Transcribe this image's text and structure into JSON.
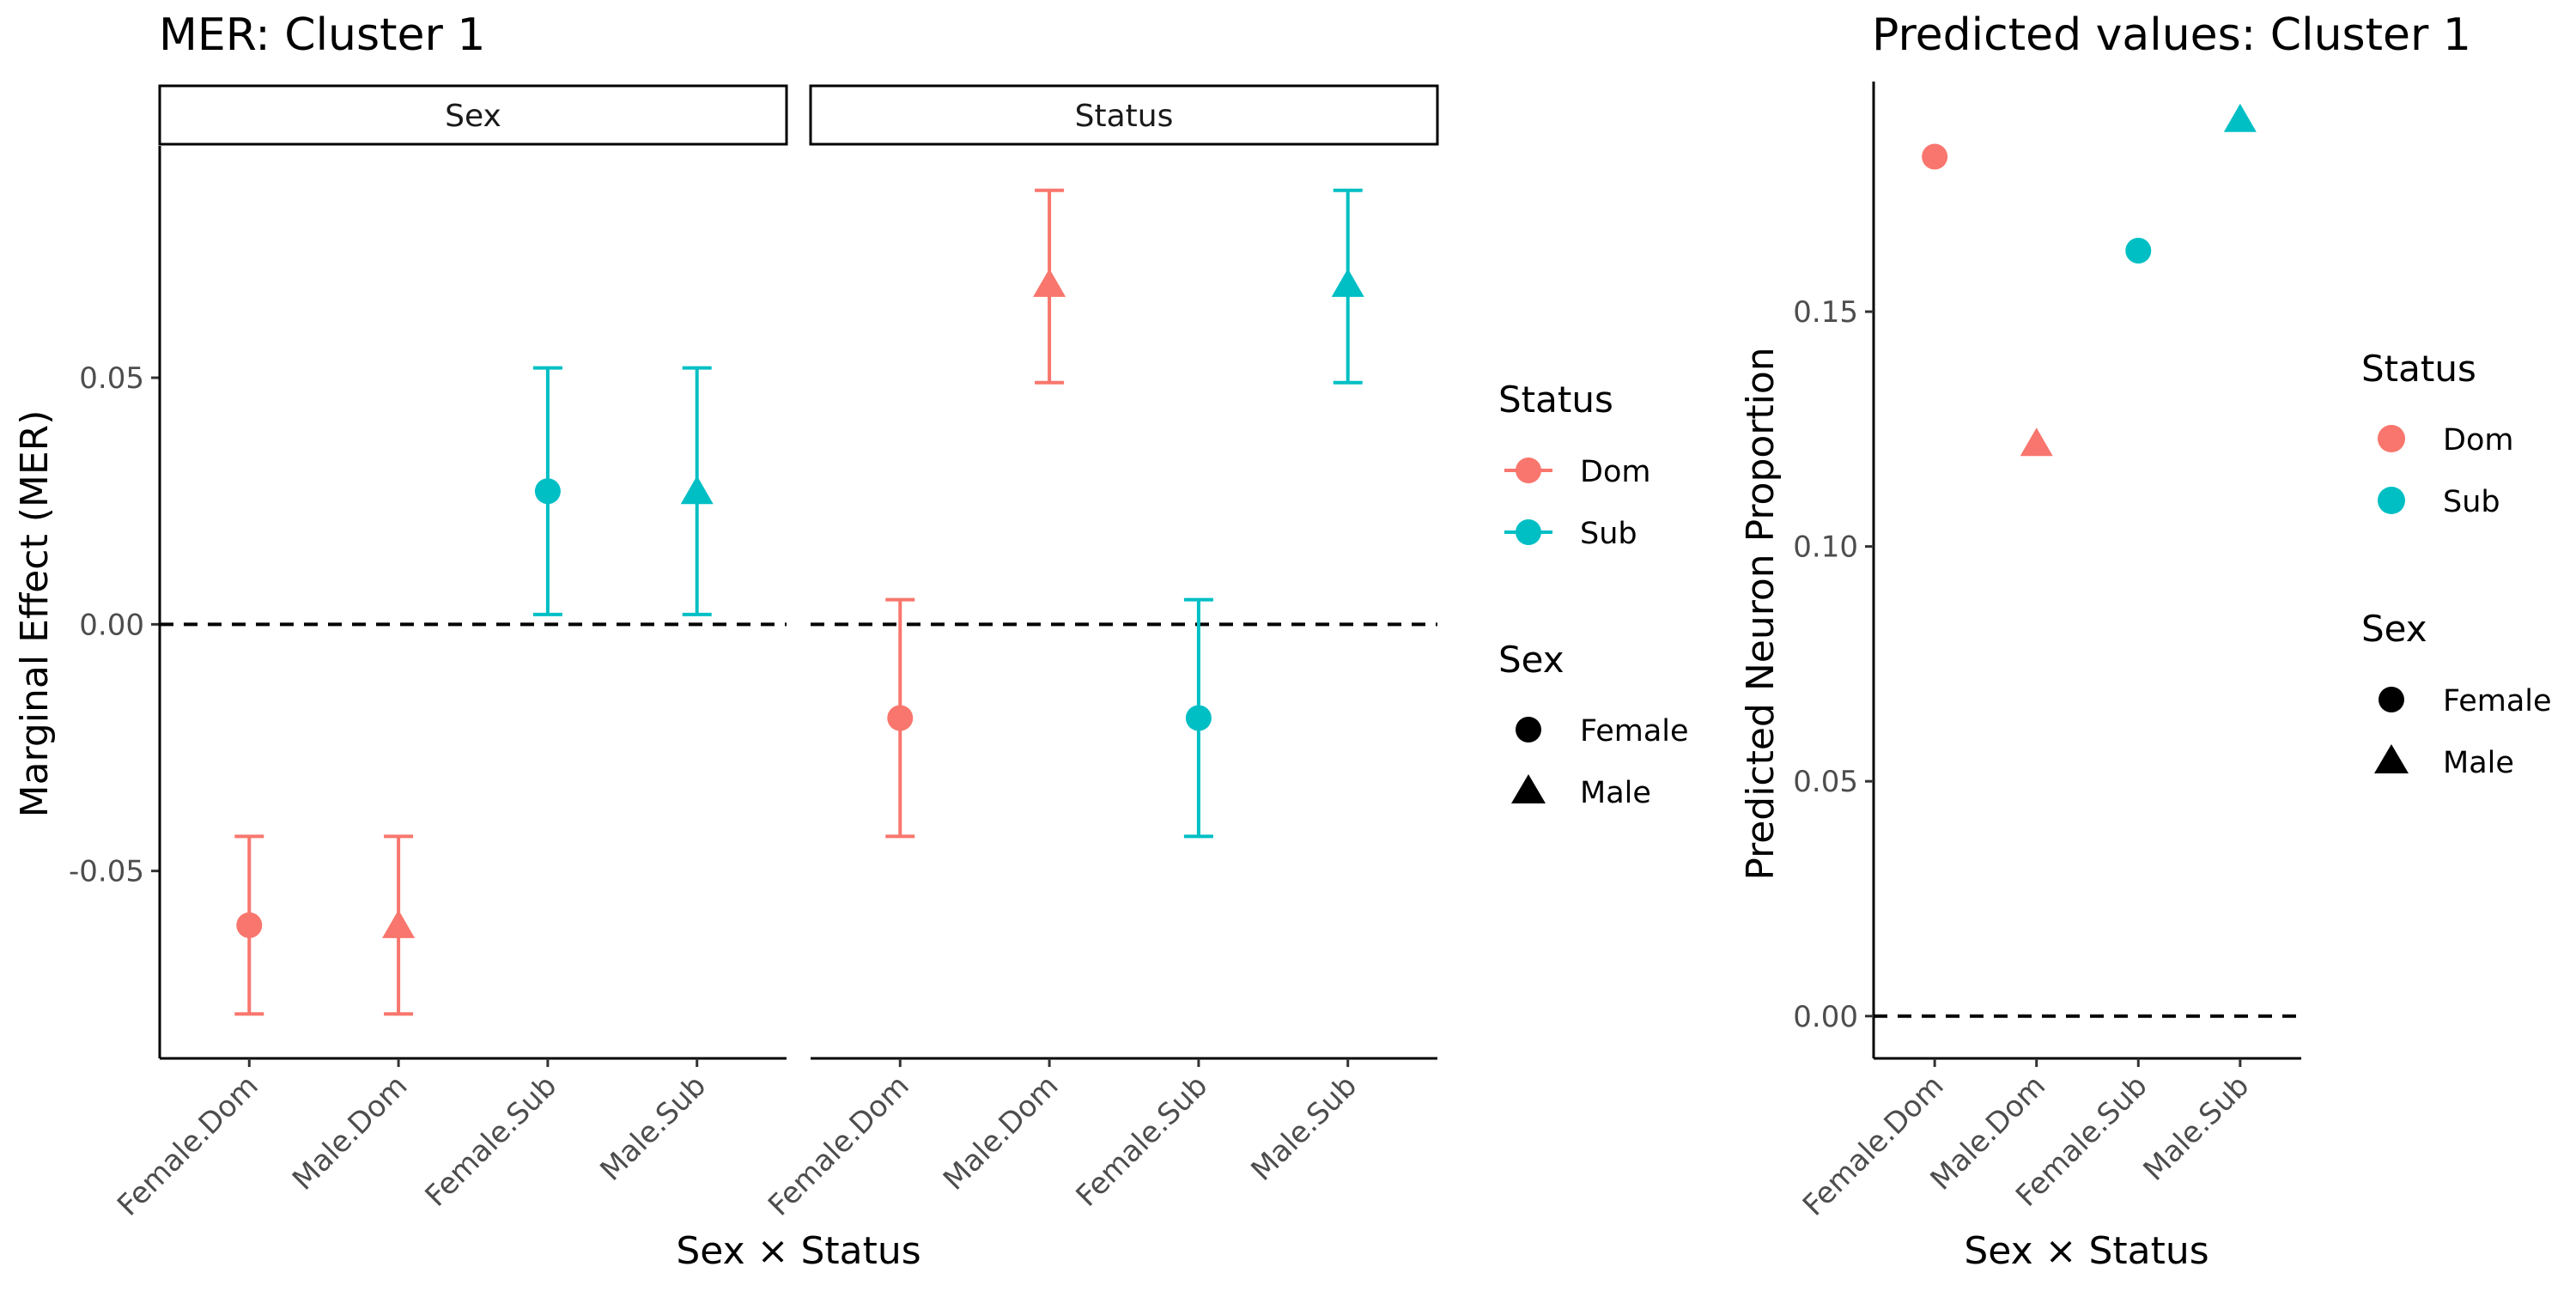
{
  "chart_data": [
    {
      "type": "errorbar",
      "title": "MER: Cluster 1",
      "xlabel": "Sex × Status",
      "ylabel": "Marginal Effect (MER)",
      "ylim": [
        -0.088,
        0.097
      ],
      "yticks": [
        -0.05,
        0.0,
        0.05
      ],
      "ytick_labels": [
        "-0.05",
        "0.00",
        "0.05"
      ],
      "reference_line": 0.0,
      "categories": [
        "Female.Dom",
        "Male.Dom",
        "Female.Sub",
        "Male.Sub"
      ],
      "facets": [
        {
          "label": "Sex",
          "points": [
            {
              "x": "Female.Dom",
              "status": "Dom",
              "sex": "Female",
              "y": -0.061,
              "ymin": -0.079,
              "ymax": -0.043
            },
            {
              "x": "Male.Dom",
              "status": "Dom",
              "sex": "Male",
              "y": -0.061,
              "ymin": -0.079,
              "ymax": -0.043
            },
            {
              "x": "Female.Sub",
              "status": "Sub",
              "sex": "Female",
              "y": 0.027,
              "ymin": 0.002,
              "ymax": 0.052
            },
            {
              "x": "Male.Sub",
              "status": "Sub",
              "sex": "Male",
              "y": 0.027,
              "ymin": 0.002,
              "ymax": 0.052
            }
          ]
        },
        {
          "label": "Status",
          "points": [
            {
              "x": "Female.Dom",
              "status": "Dom",
              "sex": "Female",
              "y": -0.019,
              "ymin": -0.043,
              "ymax": 0.005
            },
            {
              "x": "Male.Dom",
              "status": "Dom",
              "sex": "Male",
              "y": 0.069,
              "ymin": 0.049,
              "ymax": 0.088
            },
            {
              "x": "Female.Sub",
              "status": "Sub",
              "sex": "Female",
              "y": -0.019,
              "ymin": -0.043,
              "ymax": 0.005
            },
            {
              "x": "Male.Sub",
              "status": "Sub",
              "sex": "Male",
              "y": 0.069,
              "ymin": 0.049,
              "ymax": 0.088
            }
          ]
        }
      ],
      "legend": {
        "position": "right",
        "status_title": "Status",
        "status_items": [
          {
            "label": "Dom",
            "color": "#F8766D"
          },
          {
            "label": "Sub",
            "color": "#00BFC4"
          }
        ],
        "sex_title": "Sex",
        "sex_items": [
          {
            "label": "Female",
            "shape": "circle"
          },
          {
            "label": "Male",
            "shape": "triangle"
          }
        ]
      }
    },
    {
      "type": "scatter",
      "title": "Predicted values: Cluster 1",
      "xlabel": "Sex × Status",
      "ylabel": "Predicted Neuron Proportion",
      "ylim": [
        -0.009,
        0.199
      ],
      "yticks": [
        0.0,
        0.05,
        0.1,
        0.15
      ],
      "ytick_labels": [
        "0.00",
        "0.05",
        "0.10",
        "0.15"
      ],
      "reference_line": 0.0,
      "categories": [
        "Female.Dom",
        "Male.Dom",
        "Female.Sub",
        "Male.Sub"
      ],
      "points": [
        {
          "x": "Female.Dom",
          "status": "Dom",
          "sex": "Female",
          "y": 0.183
        },
        {
          "x": "Male.Dom",
          "status": "Dom",
          "sex": "Male",
          "y": 0.122
        },
        {
          "x": "Female.Sub",
          "status": "Sub",
          "sex": "Female",
          "y": 0.163
        },
        {
          "x": "Male.Sub",
          "status": "Sub",
          "sex": "Male",
          "y": 0.191
        }
      ],
      "legend": {
        "position": "right",
        "status_title": "Status",
        "status_items": [
          {
            "label": "Dom",
            "color": "#F8766D"
          },
          {
            "label": "Sub",
            "color": "#00BFC4"
          }
        ],
        "sex_title": "Sex",
        "sex_items": [
          {
            "label": "Female",
            "shape": "circle"
          },
          {
            "label": "Male",
            "shape": "triangle"
          }
        ]
      }
    }
  ]
}
